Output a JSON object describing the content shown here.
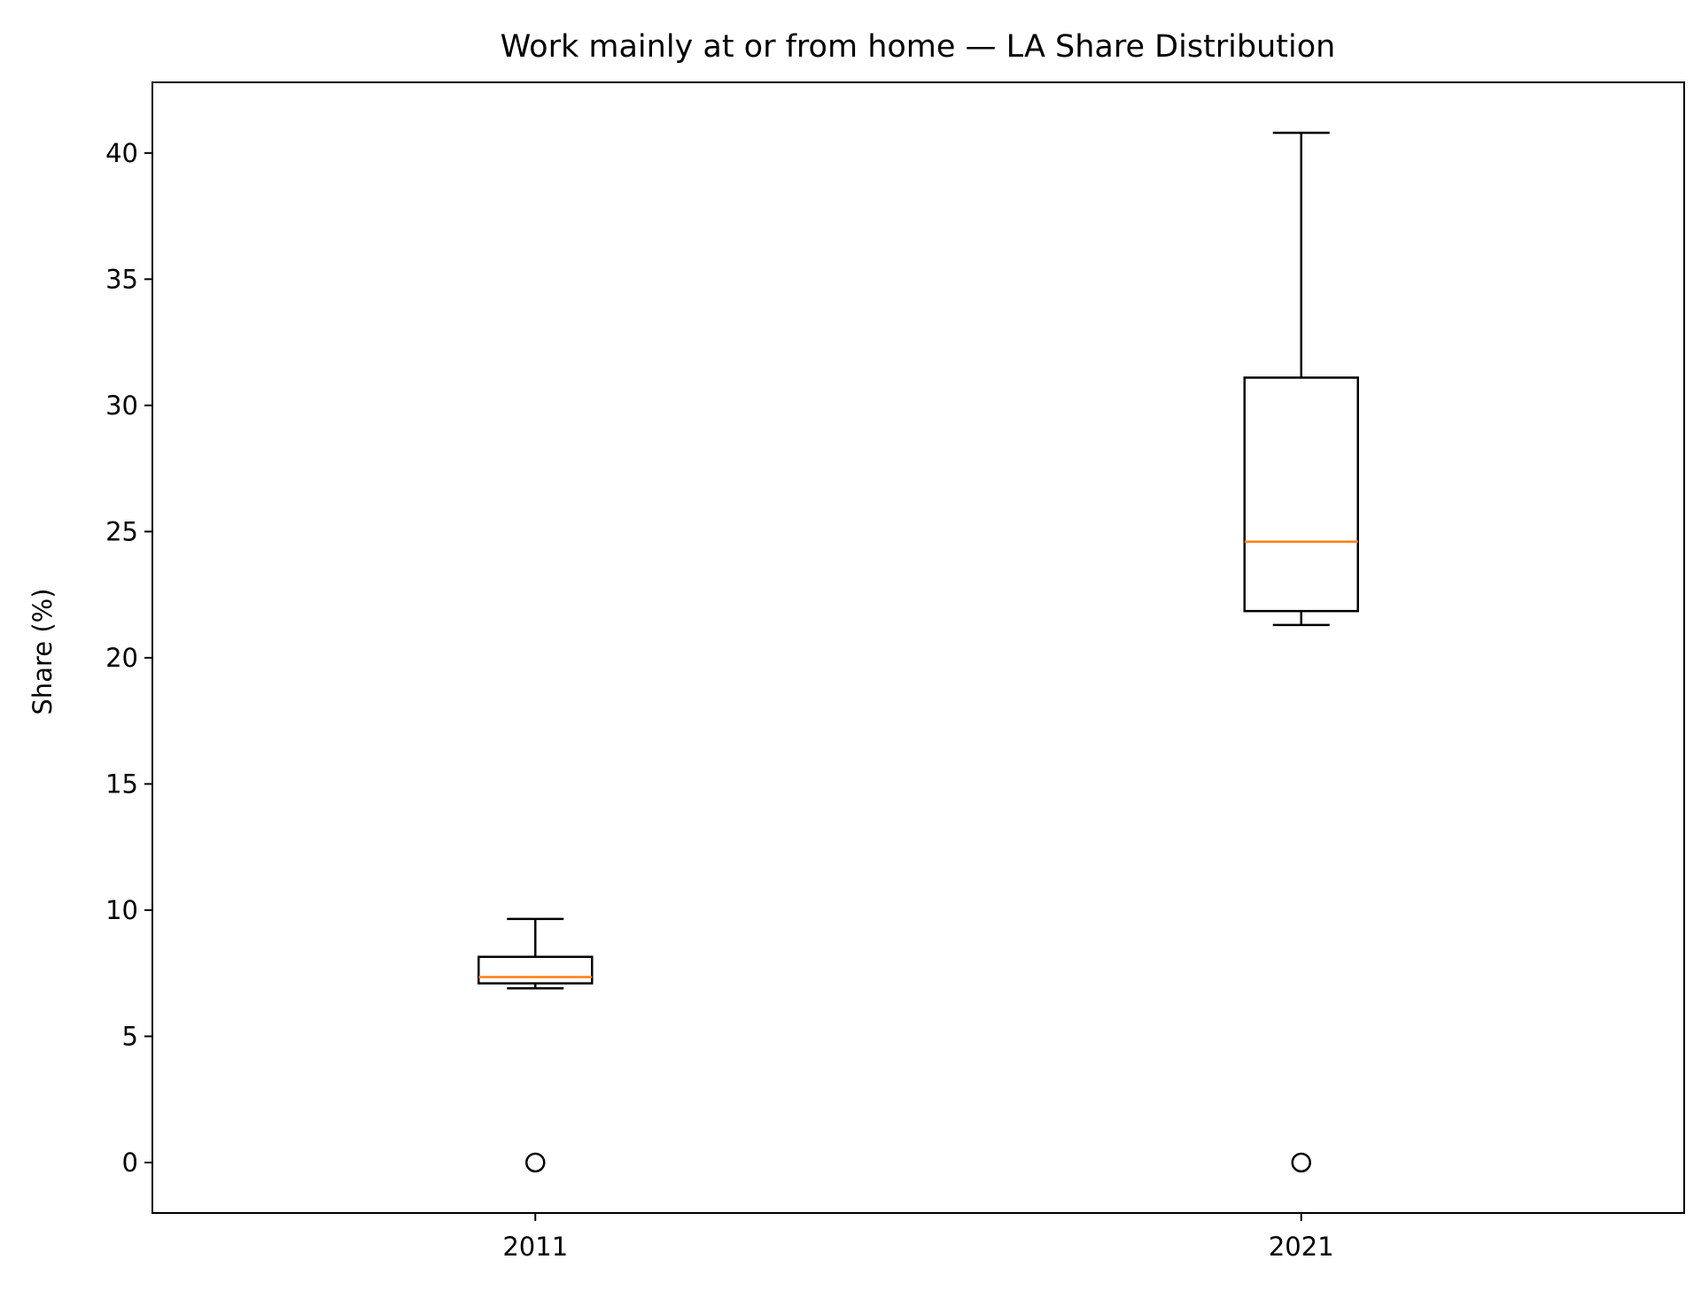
{
  "chart_data": {
    "type": "box",
    "title": "Work mainly at or from home — LA Share Distribution",
    "xlabel": "",
    "ylabel": "Share (%)",
    "categories": [
      "2011",
      "2021"
    ],
    "ylim": [
      -2.0,
      42.8
    ],
    "yticks": [
      0,
      5,
      10,
      15,
      20,
      25,
      30,
      35,
      40
    ],
    "grid": false,
    "boxes": [
      {
        "category": "2011",
        "whisker_low": 6.9,
        "q1": 7.1,
        "median": 7.35,
        "q3": 8.15,
        "whisker_high": 9.65,
        "outliers": [
          0.0
        ]
      },
      {
        "category": "2021",
        "whisker_low": 21.3,
        "q1": 21.85,
        "median": 24.6,
        "q3": 31.1,
        "whisker_high": 40.8,
        "outliers": [
          0.0
        ]
      }
    ],
    "colors": {
      "box": "#000000",
      "median": "#ff7f0e",
      "outlier": "#000000"
    }
  }
}
